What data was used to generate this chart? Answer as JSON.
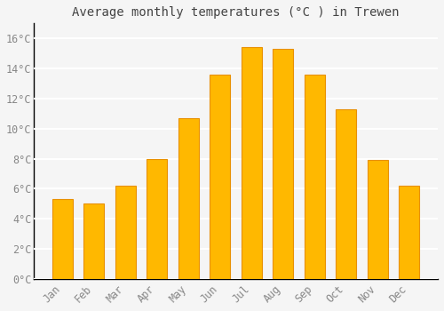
{
  "title": "Average monthly temperatures (°C ) in Trewen",
  "months": [
    "Jan",
    "Feb",
    "Mar",
    "Apr",
    "May",
    "Jun",
    "Jul",
    "Aug",
    "Sep",
    "Oct",
    "Nov",
    "Dec"
  ],
  "values": [
    5.3,
    5.0,
    6.2,
    8.0,
    10.7,
    13.6,
    15.4,
    15.3,
    13.6,
    11.3,
    7.9,
    6.2
  ],
  "bar_color": "#FFB800",
  "bar_edge_color": "#E89000",
  "background_color": "#F5F5F5",
  "grid_color": "#FFFFFF",
  "text_color": "#888888",
  "axis_color": "#000000",
  "ylim": [
    0,
    17
  ],
  "yticks": [
    0,
    2,
    4,
    6,
    8,
    10,
    12,
    14,
    16
  ],
  "title_fontsize": 10,
  "tick_fontsize": 8.5,
  "bar_width": 0.65
}
